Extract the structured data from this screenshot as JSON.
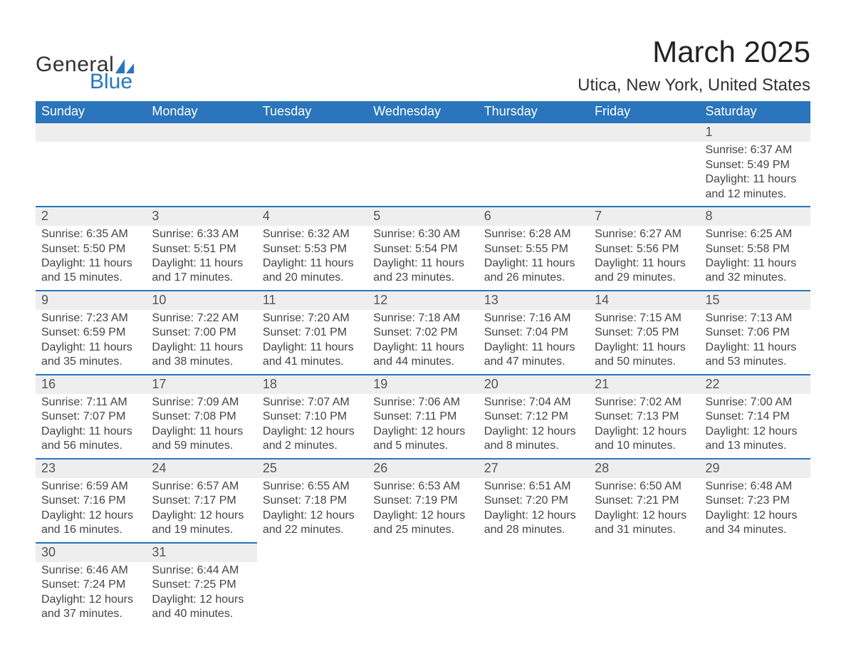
{
  "brand": {
    "word1": "General",
    "word2": "Blue",
    "accent_color": "#2a75bb",
    "text_color": "#333333"
  },
  "title": "March 2025",
  "location": "Utica, New York, United States",
  "colors": {
    "header_bg": "#2a75bb",
    "header_text": "#ffffff",
    "daynum_bg": "#eeeeee",
    "daynum_text": "#555555",
    "body_text": "#444444",
    "row_border": "#2a75bb",
    "page_bg": "#ffffff"
  },
  "fonts": {
    "title_size_pt": 32,
    "location_size_pt": 18,
    "dow_size_pt": 14,
    "daynum_size_pt": 14,
    "body_size_pt": 12
  },
  "dow": [
    "Sunday",
    "Monday",
    "Tuesday",
    "Wednesday",
    "Thursday",
    "Friday",
    "Saturday"
  ],
  "weeks": [
    [
      {
        "blank": true
      },
      {
        "blank": true
      },
      {
        "blank": true
      },
      {
        "blank": true
      },
      {
        "blank": true
      },
      {
        "blank": true
      },
      {
        "n": "1",
        "sr": "Sunrise: 6:37 AM",
        "ss": "Sunset: 5:49 PM",
        "d1": "Daylight: 11 hours",
        "d2": "and 12 minutes."
      }
    ],
    [
      {
        "n": "2",
        "sr": "Sunrise: 6:35 AM",
        "ss": "Sunset: 5:50 PM",
        "d1": "Daylight: 11 hours",
        "d2": "and 15 minutes."
      },
      {
        "n": "3",
        "sr": "Sunrise: 6:33 AM",
        "ss": "Sunset: 5:51 PM",
        "d1": "Daylight: 11 hours",
        "d2": "and 17 minutes."
      },
      {
        "n": "4",
        "sr": "Sunrise: 6:32 AM",
        "ss": "Sunset: 5:53 PM",
        "d1": "Daylight: 11 hours",
        "d2": "and 20 minutes."
      },
      {
        "n": "5",
        "sr": "Sunrise: 6:30 AM",
        "ss": "Sunset: 5:54 PM",
        "d1": "Daylight: 11 hours",
        "d2": "and 23 minutes."
      },
      {
        "n": "6",
        "sr": "Sunrise: 6:28 AM",
        "ss": "Sunset: 5:55 PM",
        "d1": "Daylight: 11 hours",
        "d2": "and 26 minutes."
      },
      {
        "n": "7",
        "sr": "Sunrise: 6:27 AM",
        "ss": "Sunset: 5:56 PM",
        "d1": "Daylight: 11 hours",
        "d2": "and 29 minutes."
      },
      {
        "n": "8",
        "sr": "Sunrise: 6:25 AM",
        "ss": "Sunset: 5:58 PM",
        "d1": "Daylight: 11 hours",
        "d2": "and 32 minutes."
      }
    ],
    [
      {
        "n": "9",
        "sr": "Sunrise: 7:23 AM",
        "ss": "Sunset: 6:59 PM",
        "d1": "Daylight: 11 hours",
        "d2": "and 35 minutes."
      },
      {
        "n": "10",
        "sr": "Sunrise: 7:22 AM",
        "ss": "Sunset: 7:00 PM",
        "d1": "Daylight: 11 hours",
        "d2": "and 38 minutes."
      },
      {
        "n": "11",
        "sr": "Sunrise: 7:20 AM",
        "ss": "Sunset: 7:01 PM",
        "d1": "Daylight: 11 hours",
        "d2": "and 41 minutes."
      },
      {
        "n": "12",
        "sr": "Sunrise: 7:18 AM",
        "ss": "Sunset: 7:02 PM",
        "d1": "Daylight: 11 hours",
        "d2": "and 44 minutes."
      },
      {
        "n": "13",
        "sr": "Sunrise: 7:16 AM",
        "ss": "Sunset: 7:04 PM",
        "d1": "Daylight: 11 hours",
        "d2": "and 47 minutes."
      },
      {
        "n": "14",
        "sr": "Sunrise: 7:15 AM",
        "ss": "Sunset: 7:05 PM",
        "d1": "Daylight: 11 hours",
        "d2": "and 50 minutes."
      },
      {
        "n": "15",
        "sr": "Sunrise: 7:13 AM",
        "ss": "Sunset: 7:06 PM",
        "d1": "Daylight: 11 hours",
        "d2": "and 53 minutes."
      }
    ],
    [
      {
        "n": "16",
        "sr": "Sunrise: 7:11 AM",
        "ss": "Sunset: 7:07 PM",
        "d1": "Daylight: 11 hours",
        "d2": "and 56 minutes."
      },
      {
        "n": "17",
        "sr": "Sunrise: 7:09 AM",
        "ss": "Sunset: 7:08 PM",
        "d1": "Daylight: 11 hours",
        "d2": "and 59 minutes."
      },
      {
        "n": "18",
        "sr": "Sunrise: 7:07 AM",
        "ss": "Sunset: 7:10 PM",
        "d1": "Daylight: 12 hours",
        "d2": "and 2 minutes."
      },
      {
        "n": "19",
        "sr": "Sunrise: 7:06 AM",
        "ss": "Sunset: 7:11 PM",
        "d1": "Daylight: 12 hours",
        "d2": "and 5 minutes."
      },
      {
        "n": "20",
        "sr": "Sunrise: 7:04 AM",
        "ss": "Sunset: 7:12 PM",
        "d1": "Daylight: 12 hours",
        "d2": "and 8 minutes."
      },
      {
        "n": "21",
        "sr": "Sunrise: 7:02 AM",
        "ss": "Sunset: 7:13 PM",
        "d1": "Daylight: 12 hours",
        "d2": "and 10 minutes."
      },
      {
        "n": "22",
        "sr": "Sunrise: 7:00 AM",
        "ss": "Sunset: 7:14 PM",
        "d1": "Daylight: 12 hours",
        "d2": "and 13 minutes."
      }
    ],
    [
      {
        "n": "23",
        "sr": "Sunrise: 6:59 AM",
        "ss": "Sunset: 7:16 PM",
        "d1": "Daylight: 12 hours",
        "d2": "and 16 minutes."
      },
      {
        "n": "24",
        "sr": "Sunrise: 6:57 AM",
        "ss": "Sunset: 7:17 PM",
        "d1": "Daylight: 12 hours",
        "d2": "and 19 minutes."
      },
      {
        "n": "25",
        "sr": "Sunrise: 6:55 AM",
        "ss": "Sunset: 7:18 PM",
        "d1": "Daylight: 12 hours",
        "d2": "and 22 minutes."
      },
      {
        "n": "26",
        "sr": "Sunrise: 6:53 AM",
        "ss": "Sunset: 7:19 PM",
        "d1": "Daylight: 12 hours",
        "d2": "and 25 minutes."
      },
      {
        "n": "27",
        "sr": "Sunrise: 6:51 AM",
        "ss": "Sunset: 7:20 PM",
        "d1": "Daylight: 12 hours",
        "d2": "and 28 minutes."
      },
      {
        "n": "28",
        "sr": "Sunrise: 6:50 AM",
        "ss": "Sunset: 7:21 PM",
        "d1": "Daylight: 12 hours",
        "d2": "and 31 minutes."
      },
      {
        "n": "29",
        "sr": "Sunrise: 6:48 AM",
        "ss": "Sunset: 7:23 PM",
        "d1": "Daylight: 12 hours",
        "d2": "and 34 minutes."
      }
    ],
    [
      {
        "n": "30",
        "sr": "Sunrise: 6:46 AM",
        "ss": "Sunset: 7:24 PM",
        "d1": "Daylight: 12 hours",
        "d2": "and 37 minutes."
      },
      {
        "n": "31",
        "sr": "Sunrise: 6:44 AM",
        "ss": "Sunset: 7:25 PM",
        "d1": "Daylight: 12 hours",
        "d2": "and 40 minutes."
      },
      {
        "blank": true
      },
      {
        "blank": true
      },
      {
        "blank": true
      },
      {
        "blank": true
      },
      {
        "blank": true
      }
    ]
  ]
}
